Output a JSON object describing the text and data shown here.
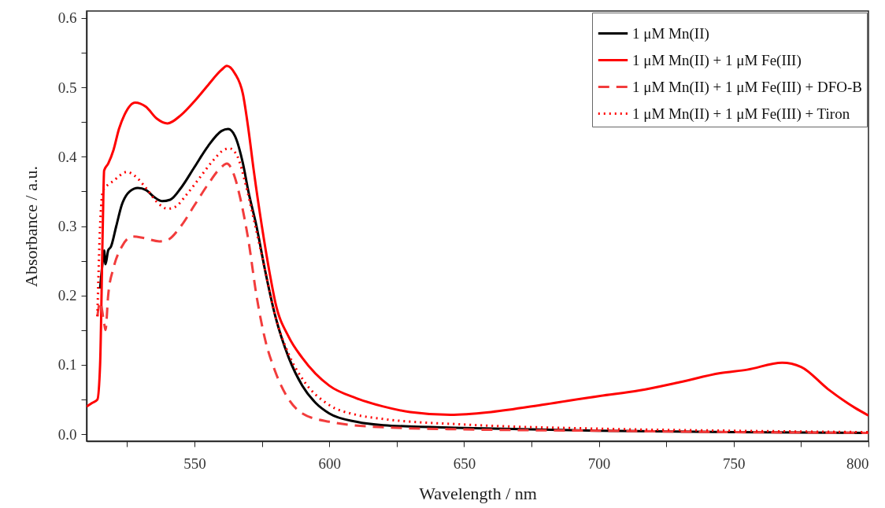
{
  "chart_data": {
    "type": "line",
    "xlabel": "Wavelength / nm",
    "ylabel": "Absorbance / a.u.",
    "xlim": [
      510,
      800
    ],
    "ylim": [
      -0.01,
      0.61
    ],
    "xticks": [
      {
        "value": 525,
        "label": null
      },
      550,
      {
        "value": 575,
        "label": null
      },
      600,
      {
        "value": 625,
        "label": null
      },
      650,
      {
        "value": 675,
        "label": null
      },
      700,
      {
        "value": 725,
        "label": null
      },
      750,
      {
        "value": 775,
        "label": null
      },
      800
    ],
    "yticks": [
      {
        "value": 0,
        "label": "0.0"
      },
      {
        "value": 0.05,
        "label": null
      },
      {
        "value": 0.1,
        "label": "0.1"
      },
      {
        "value": 0.15,
        "label": null
      },
      {
        "value": 0.2,
        "label": "0.2"
      },
      {
        "value": 0.25,
        "label": null
      },
      {
        "value": 0.3,
        "label": "0.3"
      },
      {
        "value": 0.35,
        "label": null
      },
      {
        "value": 0.4,
        "label": "0.4"
      },
      {
        "value": 0.45,
        "label": null
      },
      {
        "value": 0.5,
        "label": "0.5"
      },
      {
        "value": 0.55,
        "label": null
      },
      {
        "value": 0.6,
        "label": "0.6"
      }
    ],
    "grid": false,
    "legend": "top right",
    "series": [
      {
        "name": "1 μM Mn(II)",
        "color": "#000000",
        "line_style": "solid",
        "x": [
          515,
          516,
          516.5,
          517,
          518,
          519,
          521,
          523,
          526,
          529,
          532,
          535,
          538,
          541,
          545,
          550,
          555,
          560,
          562.5,
          565,
          568,
          570,
          573,
          576,
          580,
          585,
          590,
          595,
          600,
          610,
          620,
          650,
          700,
          750,
          800
        ],
        "values": [
          0.21,
          0.25,
          0.265,
          0.245,
          0.265,
          0.27,
          0.3,
          0.33,
          0.35,
          0.355,
          0.352,
          0.342,
          0.336,
          0.338,
          0.355,
          0.385,
          0.415,
          0.437,
          0.44,
          0.43,
          0.39,
          0.35,
          0.3,
          0.24,
          0.17,
          0.11,
          0.07,
          0.045,
          0.03,
          0.018,
          0.013,
          0.009,
          0.005,
          0.003,
          0.002
        ]
      },
      {
        "name": "1 μM Mn(II) + 1 μM Fe(III)",
        "color": "#ff0000",
        "line_style": "solid",
        "x": [
          510,
          512,
          514,
          515,
          516,
          516.5,
          518,
          520,
          522,
          524,
          528,
          532,
          536,
          540,
          545,
          550,
          555,
          560,
          562,
          565,
          568,
          570,
          572,
          575,
          578,
          580,
          585,
          590,
          600,
          610,
          620,
          630,
          645,
          660,
          680,
          700,
          715,
          730,
          745,
          755,
          768,
          775,
          785,
          795,
          800
        ],
        "values": [
          0.04,
          0.045,
          0.05,
          0.1,
          0.3,
          0.38,
          0.39,
          0.41,
          0.44,
          0.46,
          0.478,
          0.472,
          0.455,
          0.448,
          0.46,
          0.48,
          0.503,
          0.525,
          0.531,
          0.52,
          0.49,
          0.44,
          0.38,
          0.3,
          0.23,
          0.19,
          0.14,
          0.11,
          0.07,
          0.052,
          0.04,
          0.032,
          0.028,
          0.032,
          0.043,
          0.055,
          0.063,
          0.075,
          0.088,
          0.093,
          0.103,
          0.097,
          0.065,
          0.038,
          0.027
        ]
      },
      {
        "name": "1 μM Mn(II) + 1 μM Fe(III) + DFO-B",
        "color": "#f23c3c",
        "line_style": "dashed",
        "x": [
          514,
          515,
          516.5,
          517,
          518,
          520,
          523,
          527,
          531,
          537,
          540,
          545,
          550,
          555,
          560,
          562,
          565,
          567,
          570,
          573,
          576,
          580,
          585,
          590,
          600,
          620,
          650,
          700,
          750,
          800
        ],
        "values": [
          0.17,
          0.19,
          0.16,
          0.15,
          0.2,
          0.24,
          0.27,
          0.285,
          0.283,
          0.278,
          0.28,
          0.3,
          0.33,
          0.36,
          0.385,
          0.39,
          0.37,
          0.34,
          0.28,
          0.2,
          0.14,
          0.09,
          0.05,
          0.03,
          0.018,
          0.01,
          0.007,
          0.005,
          0.003,
          0.002
        ]
      },
      {
        "name": "1 μM Mn(II) + 1 μM Fe(III) + Tiron",
        "color": "#ff0000",
        "line_style": "dotted",
        "x": [
          514,
          515,
          516,
          518,
          520,
          522,
          525,
          528,
          532,
          536,
          540,
          543,
          547,
          552,
          557,
          561,
          563,
          566,
          569,
          572,
          576,
          580,
          585,
          590,
          600,
          610,
          620,
          650,
          700,
          750,
          800
        ],
        "values": [
          0.17,
          0.3,
          0.35,
          0.36,
          0.365,
          0.372,
          0.378,
          0.372,
          0.355,
          0.335,
          0.325,
          0.328,
          0.345,
          0.37,
          0.395,
          0.41,
          0.412,
          0.4,
          0.36,
          0.31,
          0.24,
          0.17,
          0.115,
          0.08,
          0.042,
          0.028,
          0.022,
          0.014,
          0.008,
          0.005,
          0.003
        ]
      }
    ]
  }
}
